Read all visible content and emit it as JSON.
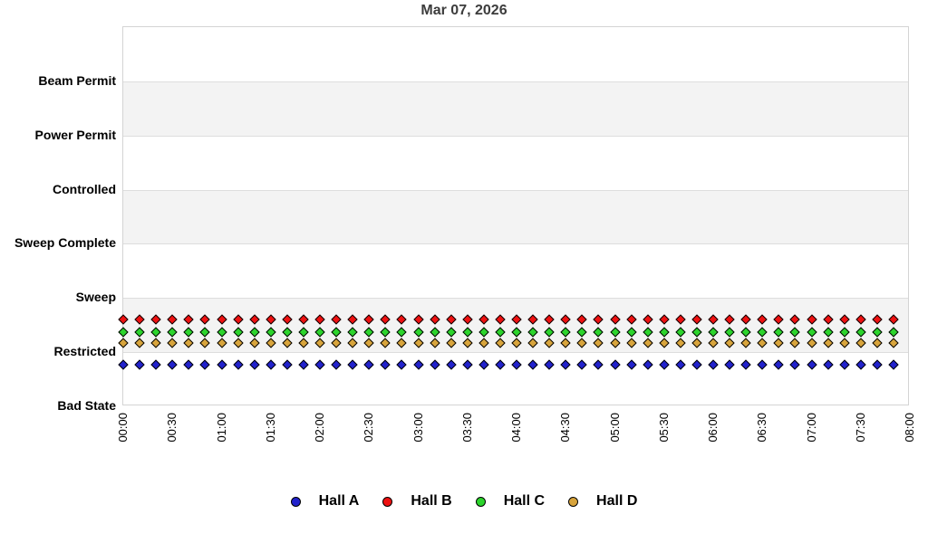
{
  "chart_data": {
    "type": "scatter",
    "title": "Mar 07, 2026",
    "xlabel": "",
    "ylabel": "",
    "y_categories_top_to_bottom": [
      "Beam Permit",
      "Power Permit",
      "Controlled",
      "Sweep Complete",
      "Sweep",
      "Restricted",
      "Bad State"
    ],
    "x_tick_labels": [
      "00:00",
      "00:30",
      "01:00",
      "01:30",
      "02:00",
      "02:30",
      "03:00",
      "03:30",
      "04:00",
      "04:30",
      "05:00",
      "05:30",
      "06:00",
      "06:30",
      "07:00",
      "07:30",
      "08:00"
    ],
    "x_range_minutes": [
      0,
      480
    ],
    "sample_interval_minutes": 10,
    "samples_per_series": 48,
    "sample_start": "00:00",
    "sample_end": "07:50",
    "grid": "horizontal-bands",
    "band_fills": [
      "#ffffff",
      "#f3f3f3"
    ],
    "series": [
      {
        "name": "Hall A",
        "color": "#2222cc",
        "marker": "diamond",
        "state": "Restricted",
        "values_constant": true
      },
      {
        "name": "Hall B",
        "color": "#ee1111",
        "marker": "diamond",
        "state": "Restricted",
        "values_constant": true
      },
      {
        "name": "Hall C",
        "color": "#2cd42c",
        "marker": "diamond",
        "state": "Restricted",
        "values_constant": true
      },
      {
        "name": "Hall D",
        "color": "#d8a43c",
        "marker": "diamond",
        "state": "Restricted",
        "values_constant": true
      }
    ],
    "legend": {
      "position": "bottom",
      "marker_shape": "circle",
      "items": [
        "Hall A",
        "Hall B",
        "Hall C",
        "Hall D"
      ]
    }
  }
}
